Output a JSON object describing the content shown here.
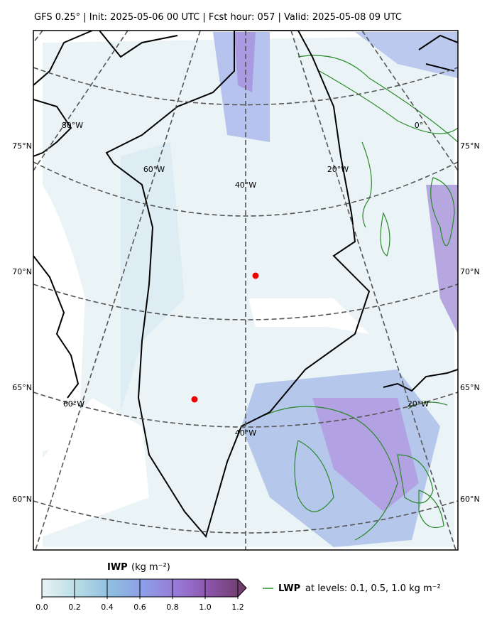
{
  "header": {
    "title": "GFS 0.25° | Init: 2025-05-06 00 UTC | Fcst hour: 057 | Valid: 2025-05-08 09 UTC"
  },
  "map": {
    "lat_labels_left": [
      "75°N",
      "70°N",
      "65°N",
      "60°N"
    ],
    "lat_labels_right": [
      "75°N",
      "70°N",
      "65°N",
      "60°N"
    ],
    "lon_labels_top": [
      "80°W",
      "60°W",
      "40°W",
      "20°W",
      "0°"
    ],
    "lon_labels_bottom": [
      "60°W",
      "40°W",
      "20°W"
    ]
  },
  "colorbar": {
    "label": "IWP",
    "unit": "(kg m⁻²)",
    "ticks": [
      {
        "value": 0,
        "label": "0.0"
      },
      {
        "value": 0.2,
        "label": "0.2"
      },
      {
        "value": 0.4,
        "label": "0.4"
      },
      {
        "value": 0.6,
        "label": "0.6"
      },
      {
        "value": 0.8,
        "label": "0.8"
      },
      {
        "value": 1,
        "label": "1.0"
      },
      {
        "value": 1.2,
        "label": "1.2"
      }
    ]
  },
  "legend": {
    "name": "LWP",
    "text": "at levels: 0.1, 0.5, 1.0  kg m⁻²"
  }
}
